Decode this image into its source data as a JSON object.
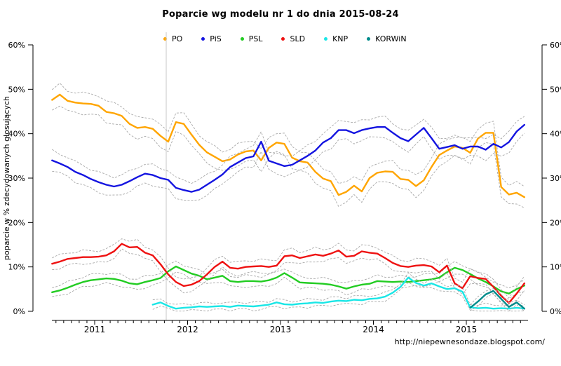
{
  "chart_data": {
    "type": "line",
    "title": "Poparcie wg modelu nr 1 do dnia 2015-08-24",
    "xlabel": "",
    "ylabel": "poparcie w % zdecydowanych głosujących",
    "watermark": "http://niepewnesondaze.blogspot.com/",
    "ylim": [
      0,
      60
    ],
    "y_ticks": [
      "0%",
      "10%",
      "20%",
      "30%",
      "40%",
      "50%",
      "60%"
    ],
    "x_tick_years": [
      "2011",
      "2012",
      "2013",
      "2014",
      "2015"
    ],
    "x_range_years": [
      2010.53,
      2015.85
    ],
    "grid": false,
    "legend_position": "top-inside",
    "event_vline_year_fraction": 2011.77,
    "confidence_bands": "dashed gray lines around each series",
    "x_monthly": [
      "2010-07",
      "2010-08",
      "2010-09",
      "2010-10",
      "2010-11",
      "2010-12",
      "2011-01",
      "2011-02",
      "2011-03",
      "2011-04",
      "2011-05",
      "2011-06",
      "2011-07",
      "2011-08",
      "2011-09",
      "2011-10",
      "2011-11",
      "2011-12",
      "2012-01",
      "2012-02",
      "2012-03",
      "2012-04",
      "2012-05",
      "2012-06",
      "2012-07",
      "2012-08",
      "2012-09",
      "2012-10",
      "2012-11",
      "2012-12",
      "2013-01",
      "2013-02",
      "2013-03",
      "2013-04",
      "2013-05",
      "2013-06",
      "2013-07",
      "2013-08",
      "2013-09",
      "2013-10",
      "2013-11",
      "2013-12",
      "2014-01",
      "2014-02",
      "2014-03",
      "2014-04",
      "2014-05",
      "2014-06",
      "2014-07",
      "2014-08",
      "2014-09",
      "2014-10",
      "2014-11",
      "2014-12",
      "2015-01",
      "2015-02",
      "2015-03",
      "2015-04",
      "2015-05",
      "2015-06",
      "2015-07",
      "2015-08"
    ],
    "series": [
      {
        "name": "PO",
        "color": "#FFA500",
        "band_halfwidth": 2.3,
        "values": [
          47.6,
          48.8,
          47.4,
          47.0,
          46.8,
          46.7,
          46.3,
          44.9,
          44.6,
          44.0,
          42.2,
          41.3,
          41.5,
          41.1,
          39.5,
          38.2,
          42.6,
          42.2,
          39.8,
          37.5,
          35.8,
          34.8,
          33.8,
          34.2,
          35.3,
          36.0,
          36.2,
          34.0,
          36.8,
          38.0,
          37.7,
          34.6,
          33.8,
          33.5,
          31.4,
          29.9,
          29.3,
          26.2,
          26.9,
          28.3,
          27.0,
          30.0,
          31.2,
          31.5,
          31.4,
          29.8,
          29.6,
          28.2,
          29.5,
          32.5,
          35.2,
          36.2,
          37.1,
          36.8,
          35.7,
          38.9,
          40.2,
          40.2,
          28.0,
          26.3,
          26.7,
          25.7
        ]
      },
      {
        "name": "PiS",
        "color": "#1414E0",
        "band_halfwidth": 2.2,
        "values": [
          34.0,
          33.3,
          32.5,
          31.4,
          30.7,
          29.8,
          29.1,
          28.5,
          28.1,
          28.5,
          29.3,
          30.2,
          31.0,
          30.7,
          30.0,
          29.6,
          27.8,
          27.3,
          26.9,
          27.4,
          28.5,
          29.6,
          30.8,
          32.5,
          33.5,
          34.5,
          34.9,
          38.2,
          33.9,
          33.3,
          32.7,
          33.0,
          34.0,
          35.0,
          36.2,
          38.0,
          39.0,
          40.8,
          40.8,
          40.1,
          40.8,
          41.2,
          41.5,
          41.5,
          40.2,
          39.0,
          38.3,
          39.8,
          41.3,
          39.0,
          36.6,
          37.0,
          37.4,
          36.6,
          37.1,
          37.1,
          36.4,
          37.7,
          36.9,
          38.1,
          40.5,
          42.0
        ]
      },
      {
        "name": "PSL",
        "color": "#22CC22",
        "band_halfwidth": 1.2,
        "values": [
          4.3,
          4.7,
          5.3,
          6.0,
          6.6,
          7.0,
          7.2,
          7.4,
          7.3,
          6.9,
          6.3,
          6.1,
          6.6,
          7.0,
          7.5,
          9.0,
          10.1,
          9.3,
          8.5,
          8.0,
          7.2,
          7.6,
          8.0,
          6.8,
          6.6,
          6.8,
          6.8,
          6.7,
          7.0,
          7.6,
          8.6,
          7.6,
          6.5,
          6.4,
          6.3,
          6.2,
          6.0,
          5.6,
          5.1,
          5.6,
          6.0,
          6.2,
          6.8,
          6.7,
          6.6,
          6.7,
          6.6,
          6.8,
          7.0,
          7.2,
          7.6,
          8.8,
          9.8,
          9.3,
          8.4,
          7.4,
          6.6,
          5.6,
          4.5,
          4.0,
          5.0,
          5.8
        ]
      },
      {
        "name": "SLD",
        "color": "#EE1111",
        "band_halfwidth": 1.4,
        "values": [
          10.7,
          11.2,
          11.8,
          12.0,
          12.2,
          12.2,
          12.3,
          12.6,
          13.5,
          15.2,
          14.4,
          14.5,
          13.2,
          12.6,
          10.6,
          8.3,
          6.6,
          5.7,
          6.0,
          6.8,
          8.3,
          10.0,
          11.2,
          9.8,
          9.6,
          10.0,
          10.1,
          10.2,
          10.0,
          10.3,
          12.4,
          12.6,
          12.0,
          12.4,
          12.8,
          12.5,
          13.0,
          13.7,
          12.3,
          12.5,
          13.5,
          13.2,
          13.0,
          12.0,
          10.9,
          10.2,
          10.0,
          10.3,
          10.4,
          10.1,
          8.8,
          10.3,
          6.3,
          5.2,
          7.9,
          7.5,
          7.3,
          5.5,
          3.5,
          1.9,
          4.0,
          6.3
        ]
      },
      {
        "name": "KNP",
        "color": "#1AE6E6",
        "band_halfwidth": 0.8,
        "values": [
          null,
          null,
          null,
          null,
          null,
          null,
          null,
          null,
          null,
          null,
          null,
          null,
          null,
          1.5,
          2.0,
          1.2,
          0.6,
          0.8,
          0.9,
          1.1,
          1.0,
          1.1,
          1.2,
          1.0,
          1.3,
          1.2,
          1.1,
          1.3,
          1.5,
          2.0,
          1.6,
          1.5,
          1.7,
          1.8,
          2.0,
          1.9,
          2.2,
          2.4,
          2.3,
          2.6,
          2.5,
          2.8,
          2.9,
          3.3,
          4.2,
          5.5,
          7.6,
          6.4,
          5.8,
          6.3,
          5.6,
          5.0,
          5.2,
          4.4,
          0.9,
          0.7,
          0.8,
          0.6,
          0.7,
          0.6,
          0.8,
          0.6
        ]
      },
      {
        "name": "KORWiN",
        "color": "#008B8B",
        "band_halfwidth": 0.8,
        "values": [
          null,
          null,
          null,
          null,
          null,
          null,
          null,
          null,
          null,
          null,
          null,
          null,
          null,
          null,
          null,
          null,
          null,
          null,
          null,
          null,
          null,
          null,
          null,
          null,
          null,
          null,
          null,
          null,
          null,
          null,
          null,
          null,
          null,
          null,
          null,
          null,
          null,
          null,
          null,
          null,
          null,
          null,
          null,
          null,
          null,
          null,
          null,
          null,
          null,
          null,
          null,
          null,
          null,
          null,
          0.8,
          2.2,
          3.8,
          4.6,
          2.8,
          1.0,
          2.0,
          0.6
        ]
      }
    ]
  }
}
